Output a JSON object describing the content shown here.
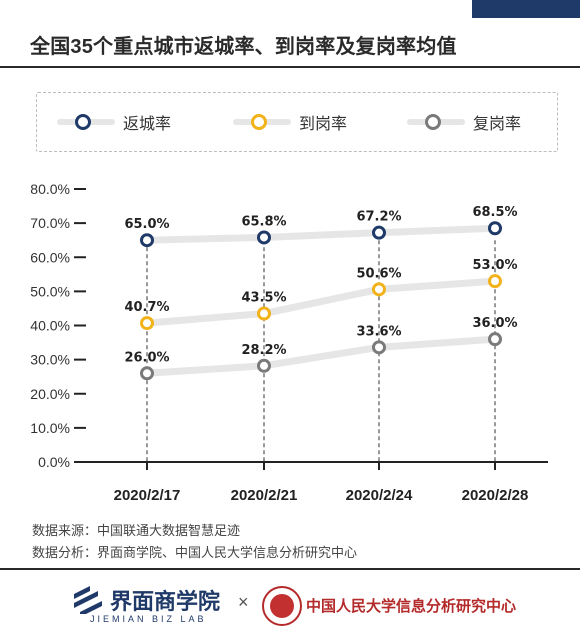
{
  "title": "全国35个重点城市返城率、到岗率及复岗率均值",
  "colors": {
    "navy": "#1f3a68",
    "gold": "#f2b21a",
    "gray": "#7a7a7a",
    "track": "#e6e6e6"
  },
  "legend": [
    {
      "label": "返城率",
      "color": "#1f3a68"
    },
    {
      "label": "到岗率",
      "color": "#f2b21a"
    },
    {
      "label": "复岗率",
      "color": "#7a7a7a"
    }
  ],
  "chart_data": {
    "type": "line",
    "x": [
      "2020/2/17",
      "2020/2/21",
      "2020/2/24",
      "2020/2/28"
    ],
    "y_ticks": [
      "0.0%",
      "10.0%",
      "20.0%",
      "30.0%",
      "40.0%",
      "50.0%",
      "60.0%",
      "70.0%",
      "80.0%"
    ],
    "ylim": [
      0,
      80
    ],
    "legend_position": "top",
    "series": [
      {
        "name": "返城率",
        "color": "#1f3a68",
        "values": [
          65.0,
          65.8,
          67.2,
          68.5
        ],
        "labels": [
          "65.0%",
          "65.8%",
          "67.2%",
          "68.5%"
        ]
      },
      {
        "name": "到岗率",
        "color": "#f2b21a",
        "values": [
          40.7,
          43.5,
          50.6,
          53.0
        ],
        "labels": [
          "40.7%",
          "43.5%",
          "50.6%",
          "53.0%"
        ]
      },
      {
        "name": "复岗率",
        "color": "#7a7a7a",
        "values": [
          26.0,
          28.2,
          33.6,
          36.0
        ],
        "labels": [
          "26.0%",
          "28.2%",
          "33.6%",
          "36.0%"
        ]
      }
    ]
  },
  "footer": {
    "source": "数据来源：中国联通大数据智慧足迹",
    "analysis": "数据分析：界面商学院、中国人民大学信息分析研究中心"
  },
  "brand": {
    "name": "界面商学院",
    "sub": "JIEMIAN BIZ LAB",
    "times": "×",
    "partner": "中国人民大学信息分析研究中心"
  }
}
